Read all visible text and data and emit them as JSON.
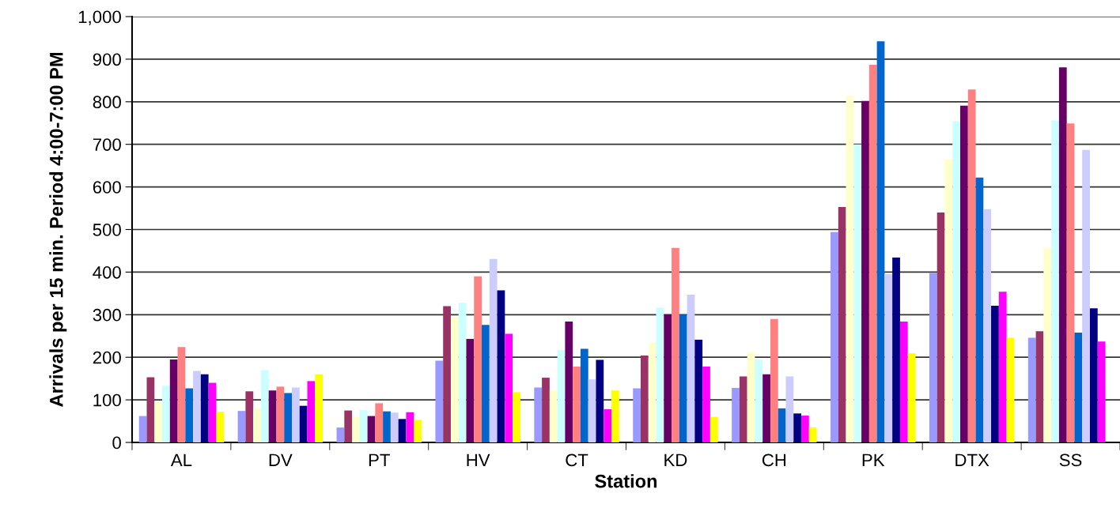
{
  "chart_data": {
    "type": "bar",
    "xlabel": "Station",
    "ylabel": "Arrivals per 15 min. Period 4:00-7:00 PM",
    "categories": [
      "AL",
      "DV",
      "PT",
      "HV",
      "CT",
      "KD",
      "CH",
      "PK",
      "DTX",
      "SS"
    ],
    "ylim": [
      0,
      1000
    ],
    "yticks": [
      0,
      100,
      200,
      300,
      400,
      500,
      600,
      700,
      800,
      900,
      {
        "value": 1000,
        "label": "1,000"
      }
    ],
    "grid": "y",
    "legend": false,
    "series": [
      {
        "color": "#9999ff",
        "values": [
          62,
          74,
          35,
          192,
          129,
          127,
          128,
          494,
          398,
          246
        ]
      },
      {
        "color": "#993366",
        "values": [
          153,
          120,
          75,
          320,
          152,
          204,
          155,
          553,
          540,
          261
        ]
      },
      {
        "color": "#ffffcc",
        "values": [
          95,
          80,
          60,
          295,
          122,
          234,
          212,
          814,
          664,
          456
        ]
      },
      {
        "color": "#ccffff",
        "values": [
          133,
          170,
          76,
          328,
          217,
          317,
          195,
          700,
          754,
          756
        ]
      },
      {
        "color": "#660066",
        "values": [
          195,
          122,
          62,
          243,
          284,
          300,
          160,
          802,
          791,
          881
        ]
      },
      {
        "color": "#ff8080",
        "values": [
          224,
          131,
          92,
          390,
          178,
          457,
          290,
          887,
          829,
          749
        ]
      },
      {
        "color": "#0066cc",
        "values": [
          127,
          116,
          73,
          276,
          220,
          300,
          80,
          942,
          622,
          258
        ]
      },
      {
        "color": "#ccccff",
        "values": [
          168,
          129,
          70,
          431,
          148,
          347,
          155,
          395,
          548,
          687
        ]
      },
      {
        "color": "#000080",
        "values": [
          160,
          86,
          55,
          357,
          194,
          241,
          68,
          434,
          321,
          315
        ]
      },
      {
        "color": "#ff00ff",
        "values": [
          140,
          144,
          71,
          255,
          78,
          178,
          63,
          284,
          354,
          237
        ]
      },
      {
        "color": "#ffff00",
        "values": [
          72,
          160,
          53,
          118,
          122,
          60,
          35,
          209,
          246,
          null
        ]
      }
    ]
  }
}
